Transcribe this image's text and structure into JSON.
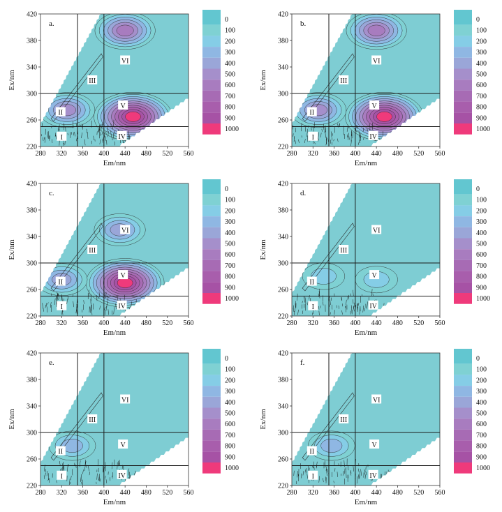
{
  "figure": {
    "xlabel": "Em/nm",
    "ylabel": "Ex/nm",
    "x_ticks": [
      "280",
      "320",
      "360",
      "400",
      "440",
      "480",
      "520",
      "560"
    ],
    "y_ticks": [
      "220",
      "260",
      "300",
      "340",
      "380",
      "420"
    ],
    "legend_levels": [
      "0",
      "100",
      "200",
      "300",
      "400",
      "500",
      "600",
      "700",
      "800",
      "900",
      "1000"
    ],
    "legend_colors": [
      "#62c6d0",
      "#7fd1d3",
      "#85cde6",
      "#8fb7e3",
      "#9aa6d8",
      "#a58fcb",
      "#a87cbf",
      "#a76bb4",
      "#a85eac",
      "#a652a5",
      "#ef3a7b"
    ],
    "plot_background": "#7ecdd3",
    "region_labels": [
      "I",
      "II",
      "III",
      "IV",
      "V",
      "VI"
    ]
  },
  "chart_data": [
    {
      "type": "heatmap",
      "panel": "a.",
      "title": "",
      "xlabel": "Em/nm",
      "ylabel": "Ex/nm",
      "xlim": [
        280,
        560
      ],
      "ylim": [
        220,
        420
      ],
      "region_boundaries": {
        "em": [
          350,
          400
        ],
        "ex": [
          250,
          300
        ]
      },
      "peaks": [
        {
          "em": 455,
          "ex": 265,
          "intensity": 1000
        },
        {
          "em": 440,
          "ex": 395,
          "intensity": 600
        },
        {
          "em": 330,
          "ex": 275,
          "intensity": 500
        }
      ],
      "regions": [
        "I",
        "II",
        "III",
        "IV",
        "V",
        "VI"
      ]
    },
    {
      "type": "heatmap",
      "panel": "b.",
      "title": "",
      "xlabel": "Em/nm",
      "ylabel": "Ex/nm",
      "xlim": [
        280,
        560
      ],
      "ylim": [
        220,
        420
      ],
      "region_boundaries": {
        "em": [
          350,
          400
        ],
        "ex": [
          250,
          300
        ]
      },
      "peaks": [
        {
          "em": 455,
          "ex": 265,
          "intensity": 1000
        },
        {
          "em": 440,
          "ex": 395,
          "intensity": 600
        },
        {
          "em": 330,
          "ex": 275,
          "intensity": 500
        }
      ],
      "regions": [
        "I",
        "II",
        "III",
        "IV",
        "V",
        "VI"
      ]
    },
    {
      "type": "heatmap",
      "panel": "c.",
      "title": "",
      "xlabel": "Em/nm",
      "ylabel": "Ex/nm",
      "xlim": [
        280,
        560
      ],
      "ylim": [
        220,
        420
      ],
      "region_boundaries": {
        "em": [
          350,
          400
        ],
        "ex": [
          250,
          300
        ]
      },
      "peaks": [
        {
          "em": 440,
          "ex": 270,
          "intensity": 1000
        },
        {
          "em": 430,
          "ex": 350,
          "intensity": 400
        },
        {
          "em": 320,
          "ex": 275,
          "intensity": 400
        }
      ],
      "regions": [
        "I",
        "II",
        "III",
        "IV",
        "V",
        "VI"
      ]
    },
    {
      "type": "heatmap",
      "panel": "d.",
      "title": "",
      "xlabel": "Em/nm",
      "ylabel": "Ex/nm",
      "xlim": [
        280,
        560
      ],
      "ylim": [
        220,
        420
      ],
      "region_boundaries": {
        "em": [
          350,
          400
        ],
        "ex": [
          250,
          300
        ]
      },
      "peaks": [
        {
          "em": 440,
          "ex": 275,
          "intensity": 200
        },
        {
          "em": 340,
          "ex": 280,
          "intensity": 200
        }
      ],
      "regions": [
        "I",
        "II",
        "III",
        "IV",
        "V",
        "VI"
      ]
    },
    {
      "type": "heatmap",
      "panel": "e.",
      "title": "",
      "xlabel": "Em/nm",
      "ylabel": "Ex/nm",
      "xlim": [
        280,
        560
      ],
      "ylim": [
        220,
        420
      ],
      "region_boundaries": {
        "em": [
          350,
          400
        ],
        "ex": [
          250,
          300
        ]
      },
      "peaks": [
        {
          "em": 340,
          "ex": 280,
          "intensity": 300
        }
      ],
      "regions": [
        "I",
        "II",
        "III",
        "IV",
        "V",
        "VI"
      ]
    },
    {
      "type": "heatmap",
      "panel": "f.",
      "title": "",
      "xlabel": "Em/nm",
      "ylabel": "Ex/nm",
      "xlim": [
        280,
        560
      ],
      "ylim": [
        220,
        420
      ],
      "region_boundaries": {
        "em": [
          350,
          400
        ],
        "ex": [
          250,
          300
        ]
      },
      "peaks": [
        {
          "em": 355,
          "ex": 280,
          "intensity": 300
        }
      ],
      "regions": [
        "I",
        "II",
        "III",
        "IV",
        "V",
        "VI"
      ]
    }
  ]
}
